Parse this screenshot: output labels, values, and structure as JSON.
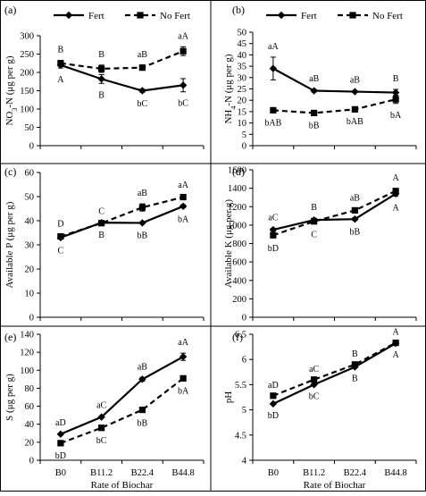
{
  "chart_data": [
    {
      "type": "line",
      "panel_label": "(a)",
      "ylabel": "NO₃-N (μg per g)",
      "ylabel_main": "NO",
      "ylabel_sub": "3",
      "ylabel_rest": "-N (μg per g)",
      "categories": [
        "B0",
        "B11.2",
        "B22.4",
        "B44.8"
      ],
      "ylim": [
        0,
        300
      ],
      "yticks": [
        0,
        50,
        100,
        150,
        200,
        250,
        300
      ],
      "legend": "top",
      "series": [
        {
          "name": "Fert",
          "marker": "diamond",
          "dashed": false,
          "values": [
            220,
            182,
            150,
            165
          ],
          "errors": [
            8,
            12,
            4,
            18
          ],
          "letters": [
            "A",
            "B",
            "bC",
            "bC"
          ],
          "letter_pos": [
            "below",
            "below",
            "below",
            "below"
          ]
        },
        {
          "name": "No Fert",
          "marker": "square",
          "dashed": true,
          "values": [
            225,
            210,
            213,
            258
          ],
          "errors": [
            8,
            10,
            6,
            12
          ],
          "letters": [
            "B",
            "B",
            "aB",
            "aA"
          ],
          "letter_pos": [
            "above",
            "above",
            "above",
            "above"
          ]
        }
      ]
    },
    {
      "type": "line",
      "panel_label": "(b)",
      "ylabel": "NH₄-N (μg per g)",
      "ylabel_main": "NH",
      "ylabel_sub": "4",
      "ylabel_rest": "-N (μg per g)",
      "categories": [
        "B0",
        "B11.2",
        "B22.4",
        "B44.8"
      ],
      "ylim": [
        0,
        50
      ],
      "yticks": [
        0,
        5,
        10,
        15,
        20,
        25,
        30,
        35,
        40,
        45,
        50
      ],
      "legend": "top",
      "series": [
        {
          "name": "Fert",
          "marker": "diamond",
          "dashed": false,
          "values": [
            34,
            24.2,
            23.8,
            23.4
          ],
          "errors": [
            5,
            0.6,
            0.4,
            1.4
          ],
          "letters": [
            "aA",
            "aB",
            "aB",
            "B"
          ],
          "letter_pos": [
            "above",
            "above",
            "above",
            "above"
          ]
        },
        {
          "name": "No Fert",
          "marker": "square",
          "dashed": true,
          "values": [
            15.6,
            14.4,
            16,
            20.4
          ],
          "errors": [
            0.5,
            0.4,
            0.3,
            1.8
          ],
          "letters": [
            "bAB",
            "bB",
            "bAB",
            "bA"
          ],
          "letter_pos": [
            "below",
            "below",
            "below",
            "below"
          ]
        }
      ]
    },
    {
      "type": "line",
      "panel_label": "(c)",
      "ylabel": "Available P (μg per g)",
      "categories": [
        "B0",
        "B11.2",
        "B22.4",
        "B44.8"
      ],
      "ylim": [
        0,
        60
      ],
      "yticks": [
        0,
        10,
        20,
        30,
        40,
        50,
        60
      ],
      "series": [
        {
          "name": "Fert",
          "marker": "diamond",
          "dashed": false,
          "values": [
            33,
            39.2,
            39.1,
            46
          ],
          "errors": [
            0.5,
            0.4,
            0.4,
            0.6
          ],
          "letters": [
            "C",
            "B",
            "bB",
            "bA"
          ],
          "letter_pos": [
            "below",
            "below",
            "below",
            "below"
          ]
        },
        {
          "name": "No Fert",
          "marker": "square",
          "dashed": true,
          "values": [
            33.5,
            39,
            45.5,
            49.8
          ],
          "errors": [
            0.8,
            0.5,
            1.5,
            0.6
          ],
          "letters": [
            "D",
            "C",
            "aB",
            "aA"
          ],
          "letter_pos": [
            "above",
            "above",
            "above",
            "above"
          ]
        }
      ]
    },
    {
      "type": "line",
      "panel_label": "(d)",
      "ylabel": "Available K (μg per g)",
      "categories": [
        "B0",
        "B11.2",
        "B22.4",
        "B44.8"
      ],
      "ylim": [
        0,
        1600
      ],
      "yticks": [
        0,
        200,
        400,
        600,
        800,
        1000,
        1200,
        1400,
        1600
      ],
      "series": [
        {
          "name": "Fert",
          "marker": "diamond",
          "dashed": false,
          "values": [
            950,
            1055,
            1065,
            1340
          ],
          "errors": [
            15,
            20,
            15,
            25
          ],
          "letters": [
            "aC",
            "B",
            "bB",
            "A"
          ],
          "letter_pos": [
            "above",
            "above",
            "below",
            "below"
          ]
        },
        {
          "name": "No Fert",
          "marker": "square",
          "dashed": true,
          "values": [
            890,
            1040,
            1160,
            1370
          ],
          "errors": [
            15,
            15,
            20,
            25
          ],
          "letters": [
            "bD",
            "C",
            "aB",
            "A"
          ],
          "letter_pos": [
            "below",
            "below",
            "above",
            "above"
          ]
        }
      ]
    },
    {
      "type": "line",
      "panel_label": "(e)",
      "ylabel": "S (μg per g)",
      "xlabel": "Rate of Biochar",
      "categories": [
        "B0",
        "B11.2",
        "B22.4",
        "B44.8"
      ],
      "ylim": [
        0,
        140
      ],
      "yticks": [
        0,
        20,
        40,
        60,
        80,
        100,
        120,
        140
      ],
      "series": [
        {
          "name": "Fert",
          "marker": "diamond",
          "dashed": false,
          "values": [
            29,
            48,
            90,
            115
          ],
          "errors": [
            1,
            1,
            2,
            4
          ],
          "letters": [
            "aD",
            "aC",
            "aB",
            "aA"
          ],
          "letter_pos": [
            "above",
            "above",
            "above",
            "above"
          ]
        },
        {
          "name": "No Fert",
          "marker": "square",
          "dashed": true,
          "values": [
            19,
            36,
            56,
            91
          ],
          "errors": [
            1,
            1,
            2,
            1
          ],
          "letters": [
            "bD",
            "bC",
            "bB",
            "bA"
          ],
          "letter_pos": [
            "below",
            "below",
            "below",
            "below"
          ]
        }
      ]
    },
    {
      "type": "line",
      "panel_label": "(f)",
      "ylabel": "pH",
      "xlabel": "Rate of Biochar",
      "categories": [
        "B0",
        "B11.2",
        "B22.4",
        "B44.8"
      ],
      "ylim": [
        4,
        6.5
      ],
      "yticks": [
        4,
        4.5,
        5,
        5.5,
        6,
        6.5
      ],
      "series": [
        {
          "name": "Fert",
          "marker": "diamond",
          "dashed": false,
          "values": [
            5.12,
            5.5,
            5.85,
            6.32
          ],
          "errors": [
            0,
            0,
            0,
            0
          ],
          "letters": [
            "bD",
            "bC",
            "B",
            "A"
          ],
          "letter_pos": [
            "below",
            "below",
            "below",
            "below"
          ]
        },
        {
          "name": "No Fert",
          "marker": "square",
          "dashed": true,
          "values": [
            5.28,
            5.6,
            5.9,
            6.33
          ],
          "errors": [
            0,
            0,
            0,
            0
          ],
          "letters": [
            "aD",
            "aC",
            "B",
            "A"
          ],
          "letter_pos": [
            "above",
            "above",
            "above",
            "above"
          ]
        }
      ]
    }
  ]
}
